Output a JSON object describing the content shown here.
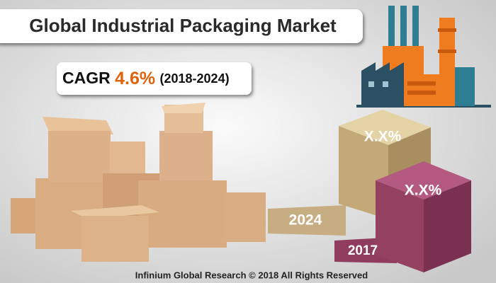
{
  "header": {
    "title": "Global Industrial Packaging Market"
  },
  "cagr": {
    "label": "CAGR",
    "value": "4.6%",
    "period": "(2018-2024)"
  },
  "cubes": [
    {
      "year": "2024",
      "value": "X.X%"
    },
    {
      "year": "2017",
      "value": "X.X%"
    }
  ],
  "footer": "Infinium Global Research © 2018 All Rights Reserved"
}
